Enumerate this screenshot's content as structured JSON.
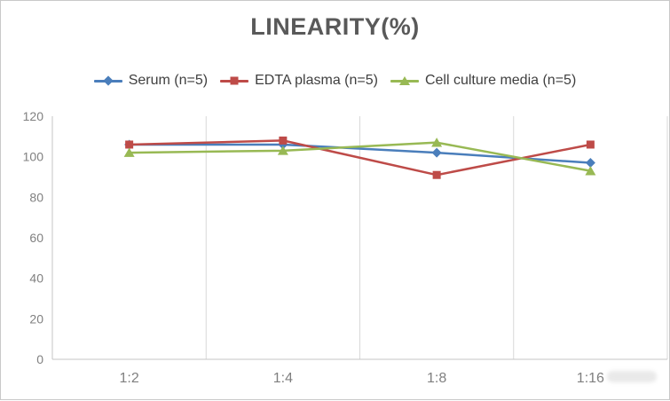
{
  "window": {
    "background": "#ffffff",
    "border_color": "#c9c9c9"
  },
  "chart_data": {
    "type": "line",
    "title": "LINEARITY(%)",
    "categories": [
      "1:2",
      "1:4",
      "1:8",
      "1:16"
    ],
    "series": [
      {
        "name": "Serum (n=5)",
        "color": "#4a7ebb",
        "marker": "diamond",
        "values": [
          106,
          106,
          102,
          97
        ]
      },
      {
        "name": "EDTA plasma (n=5)",
        "color": "#be4b48",
        "marker": "square",
        "values": [
          106,
          108,
          91,
          106
        ]
      },
      {
        "name": "Cell culture media (n=5)",
        "color": "#98b954",
        "marker": "triangle",
        "values": [
          102,
          103,
          107,
          93
        ]
      }
    ],
    "yticks": [
      0,
      20,
      40,
      60,
      80,
      100,
      120
    ],
    "ylim": [
      0,
      120
    ],
    "xlabel": "",
    "ylabel": "",
    "grid": "vertical-only",
    "legend_position": "top"
  },
  "styles": {
    "title_color": "#595959",
    "legend_text_color": "#3f3f3f",
    "tick_label_color": "#808080",
    "x_label_color": "#7f7f7f",
    "gridline_color": "#d9d9d9",
    "axis_line_color": "#c6c6c6"
  }
}
